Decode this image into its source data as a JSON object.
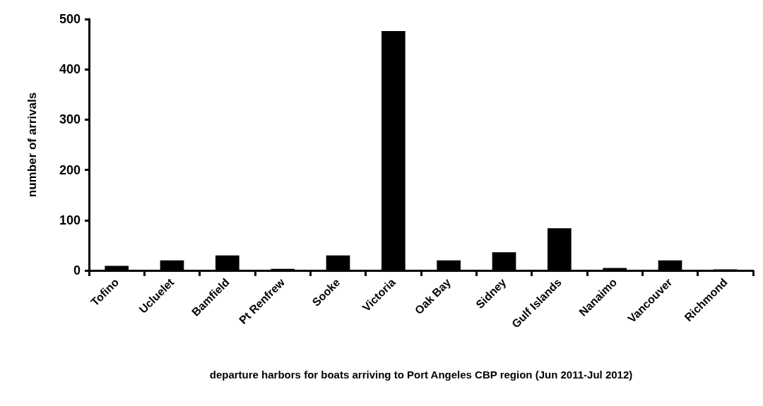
{
  "chart_data": {
    "type": "bar",
    "xlabel": "departure harbors for boats arriving to Port Angeles CBP region (Jun 2011-Jul 2012)",
    "ylabel": "number of arrivals",
    "categories": [
      "Tofino",
      "Ucluelet",
      "Bamfield",
      "Pt Renfrew",
      "Sooke",
      "Victoria",
      "Oak Bay",
      "Sidney",
      "Gulf Islands",
      "Nanaimo",
      "Vancouver",
      "Richmond"
    ],
    "values": [
      9,
      20,
      30,
      3,
      30,
      476,
      20,
      36,
      84,
      5,
      20,
      2
    ],
    "color": "#000000",
    "ylim": [
      0,
      500
    ],
    "yticks": [
      0,
      100,
      200,
      300,
      400,
      500
    ],
    "grid": false
  }
}
